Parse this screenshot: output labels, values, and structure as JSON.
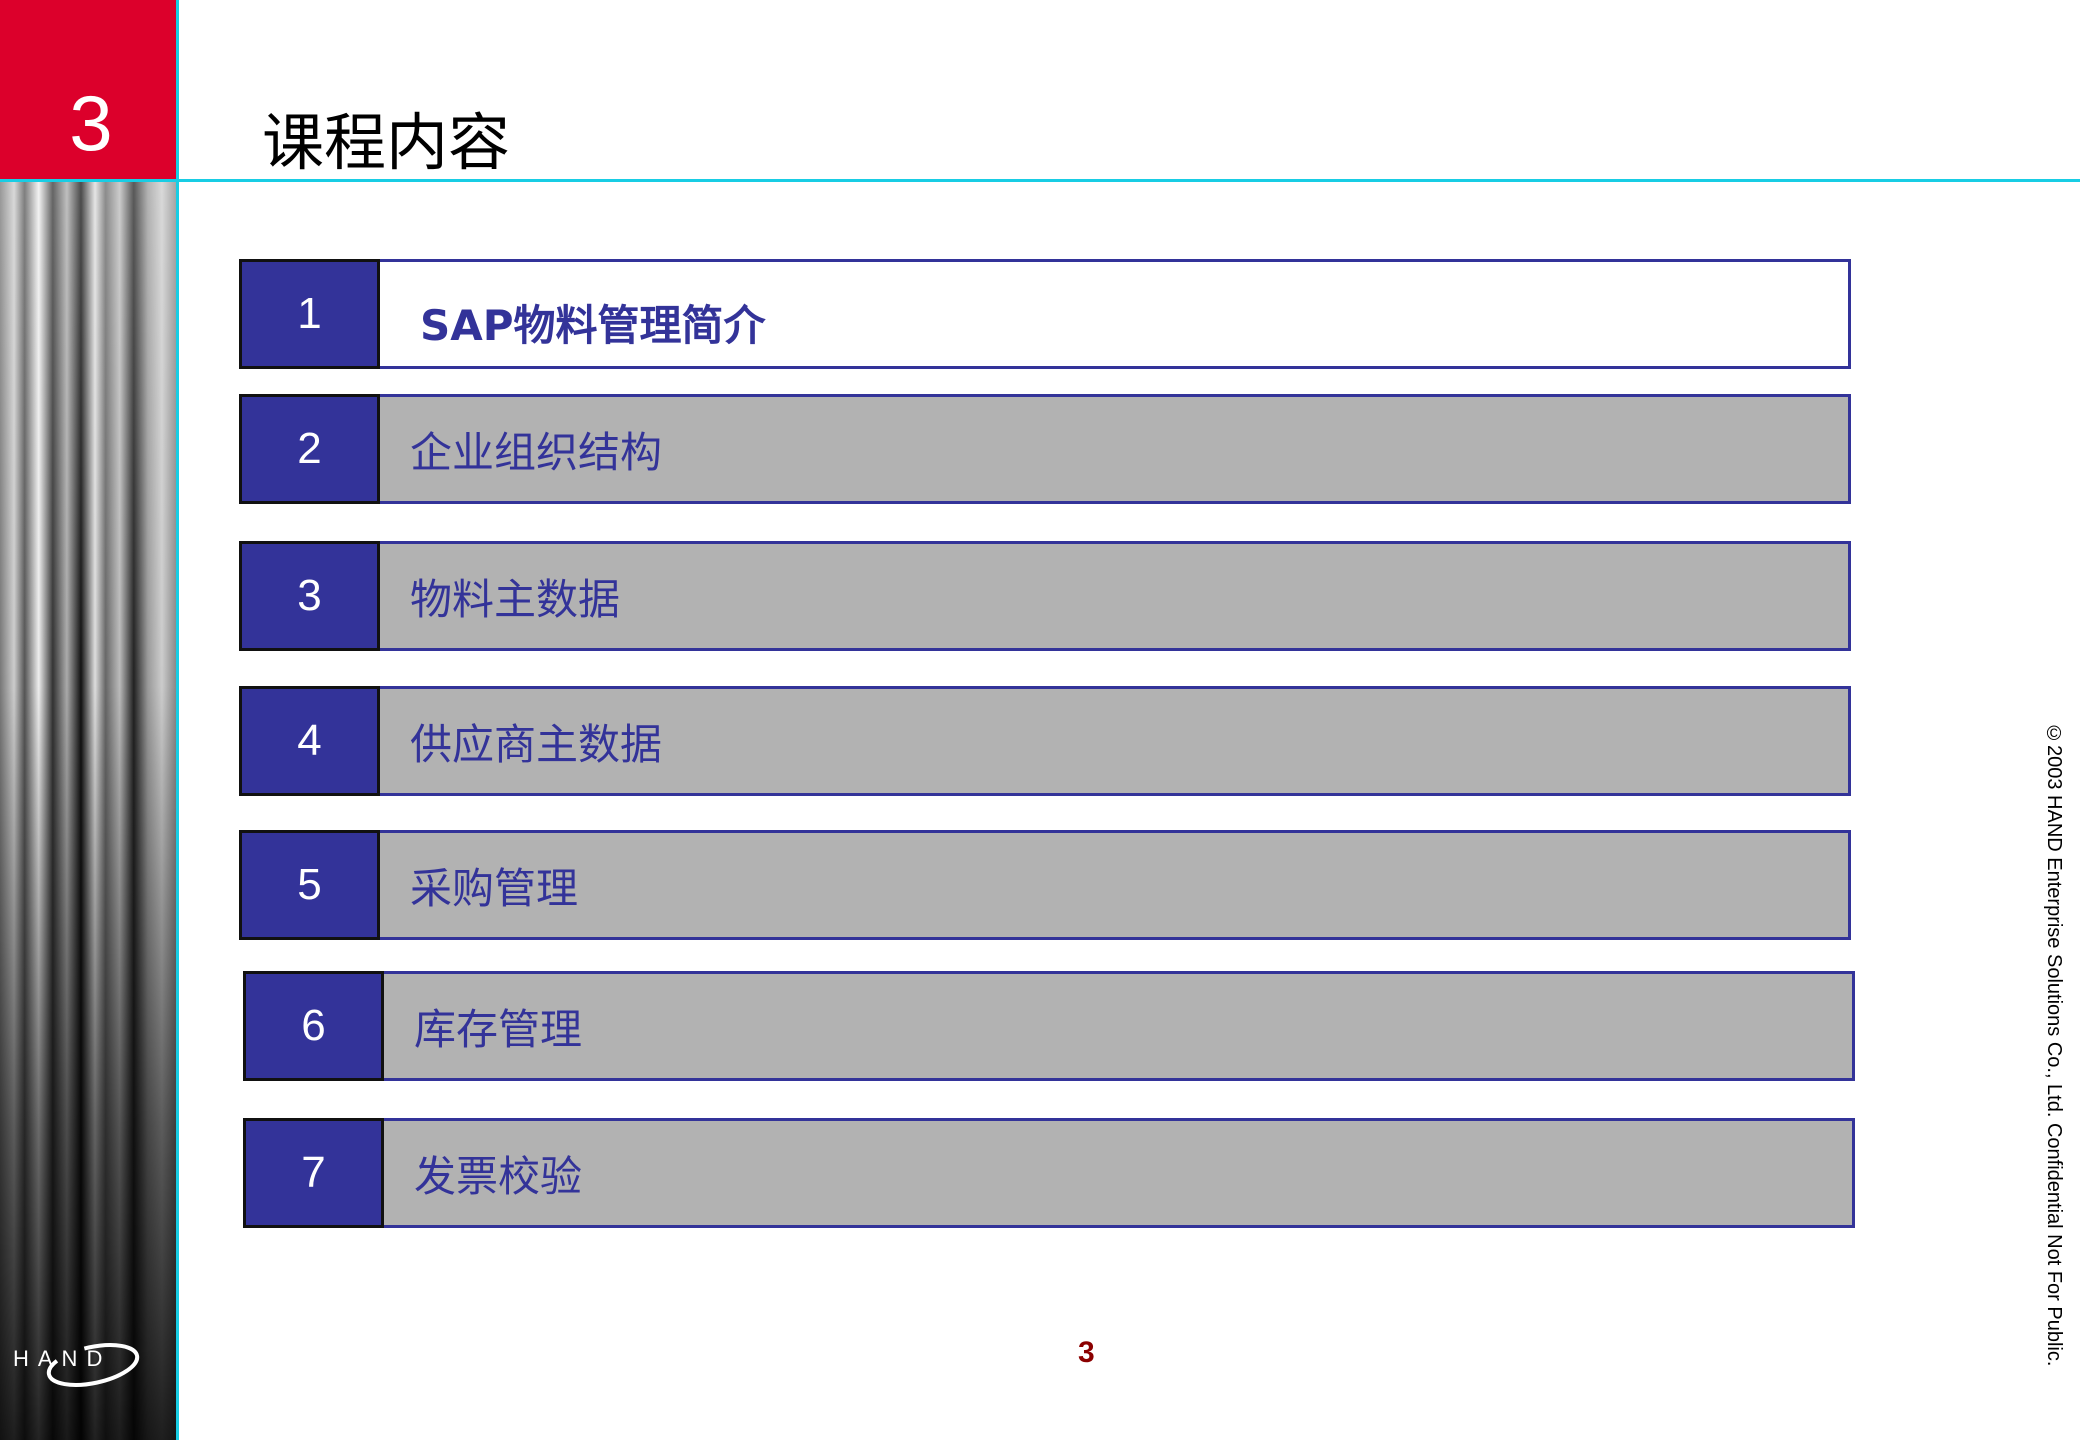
{
  "section_number": "3",
  "title": "课程内容",
  "items": [
    {
      "number": "1",
      "label": "SAP物料管理简介",
      "active": true
    },
    {
      "number": "2",
      "label": "企业组织结构",
      "active": false
    },
    {
      "number": "3",
      "label": "物料主数据",
      "active": false
    },
    {
      "number": "4",
      "label": "供应商主数据",
      "active": false
    },
    {
      "number": "5",
      "label": "采购管理",
      "active": false
    },
    {
      "number": "6",
      "label": "库存管理",
      "active": false
    },
    {
      "number": "7",
      "label": "发票校验",
      "active": false
    }
  ],
  "page_number": "3",
  "copyright": "©2003 HAND Enterprise Solutions Co., Ltd.  Confidential Not For Public.",
  "logo_text": "HAND",
  "colors": {
    "accent_red": "#dc002b",
    "line_cyan": "#18cde4",
    "item_blue": "#333399",
    "item_gray": "#b2b2b2",
    "page_number": "#8b0000"
  }
}
